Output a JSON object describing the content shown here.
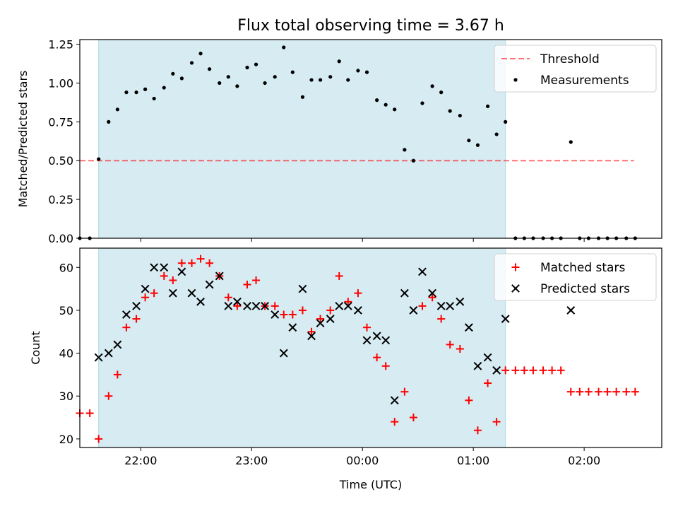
{
  "title": "Flux total observing time = 3.67 h",
  "colors": {
    "observing_span": "#add8e6",
    "threshold": "#ff0000",
    "measurements": "#000000",
    "matched": "#ff0000",
    "predicted": "#000000"
  },
  "chart_data": [
    {
      "type": "scatter",
      "xlabel": "",
      "ylabel": "Matched/Predicted stars",
      "x_unit": "hours relative to 00:00 UTC",
      "xlim": [
        -2.55,
        2.7
      ],
      "ylim": [
        0.0,
        1.28
      ],
      "yticks": [
        0.0,
        0.25,
        0.5,
        0.75,
        1.0,
        1.25
      ],
      "ytick_labels": [
        "0.00",
        "0.25",
        "0.50",
        "0.75",
        "1.00",
        "1.25"
      ],
      "xticks": [
        -2,
        -1,
        0,
        1,
        2
      ],
      "observing_span": [
        -2.38,
        1.29
      ],
      "legend": {
        "position": "upper right",
        "entries": [
          "Threshold",
          "Measurements"
        ]
      },
      "threshold": {
        "name": "Threshold",
        "value": 0.5,
        "x": [
          -2.55,
          2.45
        ]
      },
      "series": [
        {
          "name": "Measurements",
          "marker": "dot",
          "points": [
            [
              -2.55,
              0.0
            ],
            [
              -2.46,
              0.0
            ],
            [
              -2.38,
              0.51
            ],
            [
              -2.29,
              0.75
            ],
            [
              -2.21,
              0.83
            ],
            [
              -2.13,
              0.94
            ],
            [
              -2.04,
              0.94
            ],
            [
              -1.96,
              0.96
            ],
            [
              -1.88,
              0.9
            ],
            [
              -1.79,
              0.97
            ],
            [
              -1.71,
              1.06
            ],
            [
              -1.63,
              1.03
            ],
            [
              -1.54,
              1.13
            ],
            [
              -1.46,
              1.19
            ],
            [
              -1.38,
              1.09
            ],
            [
              -1.29,
              1.0
            ],
            [
              -1.21,
              1.04
            ],
            [
              -1.13,
              0.98
            ],
            [
              -1.04,
              1.1
            ],
            [
              -0.96,
              1.12
            ],
            [
              -0.88,
              1.0
            ],
            [
              -0.79,
              1.04
            ],
            [
              -0.71,
              1.23
            ],
            [
              -0.63,
              1.07
            ],
            [
              -0.54,
              0.91
            ],
            [
              -0.46,
              1.02
            ],
            [
              -0.38,
              1.02
            ],
            [
              -0.29,
              1.04
            ],
            [
              -0.21,
              1.14
            ],
            [
              -0.13,
              1.02
            ],
            [
              -0.04,
              1.08
            ],
            [
              0.04,
              1.07
            ],
            [
              0.13,
              0.89
            ],
            [
              0.21,
              0.86
            ],
            [
              0.29,
              0.83
            ],
            [
              0.38,
              0.57
            ],
            [
              0.46,
              0.5
            ],
            [
              0.54,
              0.87
            ],
            [
              0.63,
              0.98
            ],
            [
              0.71,
              0.94
            ],
            [
              0.79,
              0.82
            ],
            [
              0.88,
              0.79
            ],
            [
              0.96,
              0.63
            ],
            [
              1.04,
              0.6
            ],
            [
              1.13,
              0.85
            ],
            [
              1.21,
              0.67
            ],
            [
              1.29,
              0.75
            ],
            [
              1.38,
              0.0
            ],
            [
              1.46,
              0.0
            ],
            [
              1.54,
              0.0
            ],
            [
              1.63,
              0.0
            ],
            [
              1.71,
              0.0
            ],
            [
              1.79,
              0.0
            ],
            [
              1.88,
              0.62
            ],
            [
              1.96,
              0.0
            ],
            [
              2.04,
              0.0
            ],
            [
              2.13,
              0.0
            ],
            [
              2.21,
              0.0
            ],
            [
              2.29,
              0.0
            ],
            [
              2.38,
              0.0
            ],
            [
              2.46,
              0.0
            ]
          ]
        }
      ]
    },
    {
      "type": "scatter",
      "xlabel": "Time (UTC)",
      "ylabel": "Count",
      "x_unit": "hours relative to 00:00 UTC",
      "xlim": [
        -2.55,
        2.7
      ],
      "ylim": [
        18.0,
        64.5
      ],
      "yticks": [
        20,
        30,
        40,
        50,
        60
      ],
      "ytick_labels": [
        "20",
        "30",
        "40",
        "50",
        "60"
      ],
      "xticks": [
        -2,
        -1,
        0,
        1,
        2
      ],
      "xtick_labels": [
        "22:00",
        "23:00",
        "00:00",
        "01:00",
        "02:00"
      ],
      "observing_span": [
        -2.38,
        1.29
      ],
      "legend": {
        "position": "upper right",
        "entries": [
          "Matched stars",
          "Predicted stars"
        ]
      },
      "series": [
        {
          "name": "Matched stars",
          "marker": "plus",
          "points": [
            [
              -2.55,
              26
            ],
            [
              -2.46,
              26
            ],
            [
              -2.38,
              20
            ],
            [
              -2.29,
              30
            ],
            [
              -2.21,
              35
            ],
            [
              -2.13,
              46
            ],
            [
              -2.04,
              48
            ],
            [
              -1.96,
              53
            ],
            [
              -1.88,
              54
            ],
            [
              -1.79,
              58
            ],
            [
              -1.71,
              57
            ],
            [
              -1.63,
              61
            ],
            [
              -1.54,
              61
            ],
            [
              -1.46,
              62
            ],
            [
              -1.38,
              61
            ],
            [
              -1.29,
              58
            ],
            [
              -1.21,
              53
            ],
            [
              -1.13,
              51
            ],
            [
              -1.04,
              56
            ],
            [
              -0.96,
              57
            ],
            [
              -0.88,
              51
            ],
            [
              -0.79,
              51
            ],
            [
              -0.71,
              49
            ],
            [
              -0.63,
              49
            ],
            [
              -0.54,
              50
            ],
            [
              -0.46,
              45
            ],
            [
              -0.38,
              48
            ],
            [
              -0.29,
              50
            ],
            [
              -0.21,
              58
            ],
            [
              -0.13,
              52
            ],
            [
              -0.04,
              54
            ],
            [
              0.04,
              46
            ],
            [
              0.13,
              39
            ],
            [
              0.21,
              37
            ],
            [
              0.29,
              24
            ],
            [
              0.38,
              31
            ],
            [
              0.46,
              25
            ],
            [
              0.54,
              51
            ],
            [
              0.63,
              53
            ],
            [
              0.71,
              48
            ],
            [
              0.79,
              42
            ],
            [
              0.88,
              41
            ],
            [
              0.96,
              29
            ],
            [
              1.04,
              22
            ],
            [
              1.13,
              33
            ],
            [
              1.21,
              24
            ],
            [
              1.29,
              36
            ],
            [
              1.38,
              36
            ],
            [
              1.46,
              36
            ],
            [
              1.54,
              36
            ],
            [
              1.63,
              36
            ],
            [
              1.71,
              36
            ],
            [
              1.79,
              36
            ],
            [
              1.88,
              31
            ],
            [
              1.96,
              31
            ],
            [
              2.04,
              31
            ],
            [
              2.13,
              31
            ],
            [
              2.21,
              31
            ],
            [
              2.29,
              31
            ],
            [
              2.38,
              31
            ],
            [
              2.46,
              31
            ]
          ]
        },
        {
          "name": "Predicted stars",
          "marker": "x",
          "points": [
            [
              -2.38,
              39
            ],
            [
              -2.29,
              40
            ],
            [
              -2.21,
              42
            ],
            [
              -2.13,
              49
            ],
            [
              -2.04,
              51
            ],
            [
              -1.96,
              55
            ],
            [
              -1.88,
              60
            ],
            [
              -1.79,
              60
            ],
            [
              -1.71,
              54
            ],
            [
              -1.63,
              59
            ],
            [
              -1.54,
              54
            ],
            [
              -1.46,
              52
            ],
            [
              -1.38,
              56
            ],
            [
              -1.29,
              58
            ],
            [
              -1.21,
              51
            ],
            [
              -1.13,
              52
            ],
            [
              -1.04,
              51
            ],
            [
              -0.96,
              51
            ],
            [
              -0.88,
              51
            ],
            [
              -0.79,
              49
            ],
            [
              -0.71,
              40
            ],
            [
              -0.63,
              46
            ],
            [
              -0.54,
              55
            ],
            [
              -0.46,
              44
            ],
            [
              -0.38,
              47
            ],
            [
              -0.29,
              48
            ],
            [
              -0.21,
              51
            ],
            [
              -0.13,
              51
            ],
            [
              -0.04,
              50
            ],
            [
              0.04,
              43
            ],
            [
              0.13,
              44
            ],
            [
              0.21,
              43
            ],
            [
              0.29,
              29
            ],
            [
              0.38,
              54
            ],
            [
              0.46,
              50
            ],
            [
              0.54,
              59
            ],
            [
              0.63,
              54
            ],
            [
              0.71,
              51
            ],
            [
              0.79,
              51
            ],
            [
              0.88,
              52
            ],
            [
              0.96,
              46
            ],
            [
              1.04,
              37
            ],
            [
              1.13,
              39
            ],
            [
              1.21,
              36
            ],
            [
              1.29,
              48
            ],
            [
              1.88,
              50
            ]
          ]
        }
      ]
    }
  ]
}
